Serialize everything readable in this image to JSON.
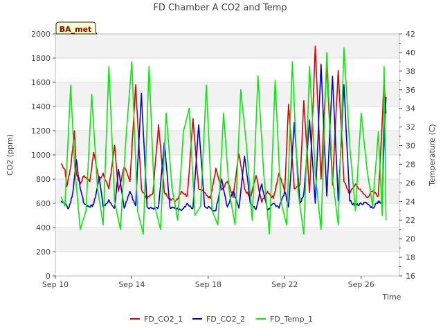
{
  "chart_data": {
    "type": "line",
    "title": "FD Chamber A CO2 and Temp",
    "badge": "BA_met",
    "xlabel": "Time",
    "ylabel_left": "CO2 (ppm)",
    "ylabel_right": "Temperature (C)",
    "x_ticks": [
      "Sep 10",
      "Sep 14",
      "Sep 18",
      "Sep 22",
      "Sep 26"
    ],
    "x_tick_days": [
      10,
      14,
      18,
      22,
      26
    ],
    "xlim": [
      10,
      28
    ],
    "ylim_left": [
      0,
      2000
    ],
    "ylim_right": [
      16,
      42
    ],
    "yticks_left": [
      0,
      200,
      400,
      600,
      800,
      1000,
      1200,
      1400,
      1600,
      1800,
      2000
    ],
    "yticks_right": [
      16,
      18,
      20,
      22,
      24,
      26,
      28,
      30,
      32,
      34,
      36,
      38,
      40,
      42
    ],
    "grid": true,
    "banded_background": true,
    "legend_placement": "bottom",
    "series": [
      {
        "name": "FD_CO2_1",
        "axis": "left",
        "color": "#dd0000",
        "x": [
          10.3,
          10.5,
          10.6,
          10.8,
          11.0,
          11.1,
          11.3,
          11.5,
          11.8,
          12.0,
          12.3,
          12.5,
          12.8,
          13.1,
          13.3,
          13.6,
          13.9,
          14.2,
          14.5,
          14.8,
          15.1,
          15.4,
          15.7,
          16.0,
          16.3,
          16.6,
          16.9,
          17.2,
          17.5,
          17.8,
          18.1,
          18.4,
          18.7,
          19.0,
          19.3,
          19.6,
          19.9,
          20.2,
          20.5,
          20.8,
          21.1,
          21.4,
          21.7,
          22.0,
          22.2,
          22.5,
          22.8,
          23.0,
          23.3,
          23.6,
          23.9,
          24.2,
          24.5,
          24.8,
          25.1,
          25.4,
          25.7,
          26.0,
          26.3,
          26.6,
          26.9,
          27.1,
          27.2,
          27.3
        ],
        "y": [
          930,
          880,
          740,
          900,
          1200,
          840,
          760,
          830,
          780,
          1020,
          790,
          850,
          720,
          1080,
          700,
          900,
          780,
          1580,
          720,
          640,
          680,
          1250,
          690,
          640,
          620,
          700,
          660,
          1300,
          720,
          690,
          640,
          890,
          710,
          780,
          650,
          1010,
          720,
          640,
          830,
          610,
          700,
          640,
          850,
          700,
          1420,
          720,
          760,
          1450,
          690,
          1900,
          800,
          1740,
          750,
          1700,
          780,
          680,
          760,
          700,
          650,
          700,
          660,
          1280,
          1620,
          1340
        ]
      },
      {
        "name": "FD_CO2_2",
        "axis": "left",
        "color": "#0000dd",
        "x": [
          10.3,
          10.5,
          10.7,
          10.9,
          11.1,
          11.3,
          11.5,
          11.8,
          12.0,
          12.3,
          12.5,
          12.8,
          13.1,
          13.3,
          13.6,
          13.9,
          14.2,
          14.5,
          14.8,
          15.1,
          15.4,
          15.7,
          16.0,
          16.3,
          16.6,
          16.9,
          17.2,
          17.5,
          17.8,
          18.1,
          18.4,
          18.7,
          19.0,
          19.3,
          19.6,
          19.9,
          20.2,
          20.5,
          20.8,
          21.1,
          21.4,
          21.7,
          22.0,
          22.2,
          22.5,
          22.8,
          23.0,
          23.3,
          23.6,
          23.9,
          24.2,
          24.5,
          24.8,
          25.1,
          25.4,
          25.7,
          26.0,
          26.3,
          26.6,
          26.9,
          27.1,
          27.2,
          27.3
        ],
        "y": [
          620,
          600,
          560,
          680,
          960,
          720,
          600,
          570,
          590,
          820,
          570,
          630,
          560,
          880,
          560,
          700,
          580,
          1510,
          570,
          560,
          570,
          1100,
          560,
          560,
          540,
          600,
          560,
          1250,
          580,
          560,
          540,
          800,
          570,
          700,
          560,
          990,
          600,
          550,
          760,
          540,
          600,
          560,
          700,
          570,
          1270,
          600,
          680,
          1290,
          600,
          1750,
          660,
          1650,
          620,
          1580,
          620,
          580,
          600,
          600,
          560,
          620,
          600,
          1160,
          1480
        ]
      },
      {
        "name": "FD_Temp_1",
        "axis": "right",
        "color": "#00ee00",
        "x": [
          10.3,
          10.5,
          10.8,
          11.0,
          11.3,
          11.6,
          11.9,
          12.2,
          12.5,
          12.8,
          13.1,
          13.4,
          13.7,
          14.0,
          14.3,
          14.6,
          14.9,
          15.2,
          15.5,
          15.8,
          16.1,
          16.4,
          16.7,
          17.0,
          17.3,
          17.6,
          17.9,
          18.2,
          18.5,
          18.8,
          19.1,
          19.4,
          19.7,
          20.0,
          20.3,
          20.6,
          20.9,
          21.2,
          21.5,
          21.8,
          22.1,
          22.4,
          22.7,
          23.0,
          23.3,
          23.6,
          23.9,
          24.2,
          24.5,
          24.8,
          25.1,
          25.4,
          25.7,
          26.0,
          26.3,
          26.6,
          26.9,
          27.1,
          27.2,
          27.3
        ],
        "y": [
          24.5,
          23.5,
          36.5,
          28.0,
          21.0,
          23.0,
          35.5,
          25.5,
          21.5,
          38.5,
          24.0,
          21.0,
          31.0,
          39.0,
          23.0,
          20.5,
          38.5,
          23.5,
          21.0,
          33.5,
          25.5,
          22.0,
          31.5,
          34.0,
          22.5,
          23.5,
          36.5,
          23.0,
          21.5,
          33.5,
          25.0,
          21.5,
          36.0,
          30.0,
          22.0,
          37.5,
          27.0,
          20.5,
          37.0,
          24.0,
          21.5,
          39.0,
          25.0,
          20.5,
          38.5,
          27.0,
          21.0,
          40.0,
          26.5,
          21.5,
          40.5,
          30.0,
          23.0,
          33.5,
          27.5,
          23.5,
          31.5,
          22.5,
          38.5,
          22.0
        ]
      }
    ]
  }
}
